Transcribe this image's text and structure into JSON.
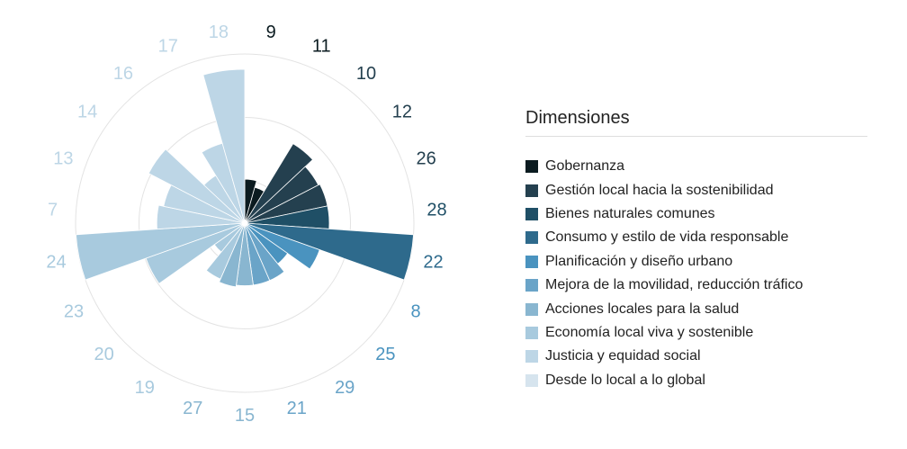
{
  "chart_data": {
    "type": "polar-bar",
    "legend_title": "Dimensiones",
    "legend_position": "right",
    "grid": true,
    "rlim": [
      0,
      1
    ],
    "dimensions": [
      {
        "name": "Gobernanza",
        "color": "#0b1b20"
      },
      {
        "name": "Gestión local hacia la sostenibilidad",
        "color": "#24404f"
      },
      {
        "name": "Bienes naturales comunes",
        "color": "#1f4f66"
      },
      {
        "name": "Consumo y estilo de vida responsable",
        "color": "#2e6a8c"
      },
      {
        "name": "Planificación y diseño urbano",
        "color": "#4a93bf"
      },
      {
        "name": "Mejora de la movilidad, reducción tráfico",
        "color": "#6aa4c8"
      },
      {
        "name": "Acciones locales para la salud",
        "color": "#89b6d0"
      },
      {
        "name": "Economía local viva y sostenible",
        "color": "#a8cade"
      },
      {
        "name": "Justicia y equidad social",
        "color": "#bdd6e6"
      },
      {
        "name": "Desde lo local a lo global",
        "color": "#d6e4ee"
      }
    ],
    "categories": [
      "9",
      "11",
      "10",
      "12",
      "26",
      "28",
      "22",
      "8",
      "25",
      "29",
      "21",
      "15",
      "27",
      "19",
      "20",
      "23",
      "24",
      "7",
      "13",
      "14",
      "16",
      "17",
      "18"
    ],
    "dimension_index": [
      0,
      0,
      1,
      1,
      1,
      2,
      3,
      4,
      4,
      5,
      5,
      6,
      6,
      7,
      7,
      7,
      7,
      8,
      8,
      8,
      8,
      8,
      8
    ],
    "values": [
      0.26,
      0.22,
      0.55,
      0.49,
      0.5,
      0.5,
      1.0,
      0.47,
      0.31,
      0.37,
      0.37,
      0.37,
      0.38,
      0.36,
      0.22,
      0.62,
      1.0,
      0.52,
      0.49,
      0.64,
      0.33,
      0.49,
      0.91
    ]
  }
}
